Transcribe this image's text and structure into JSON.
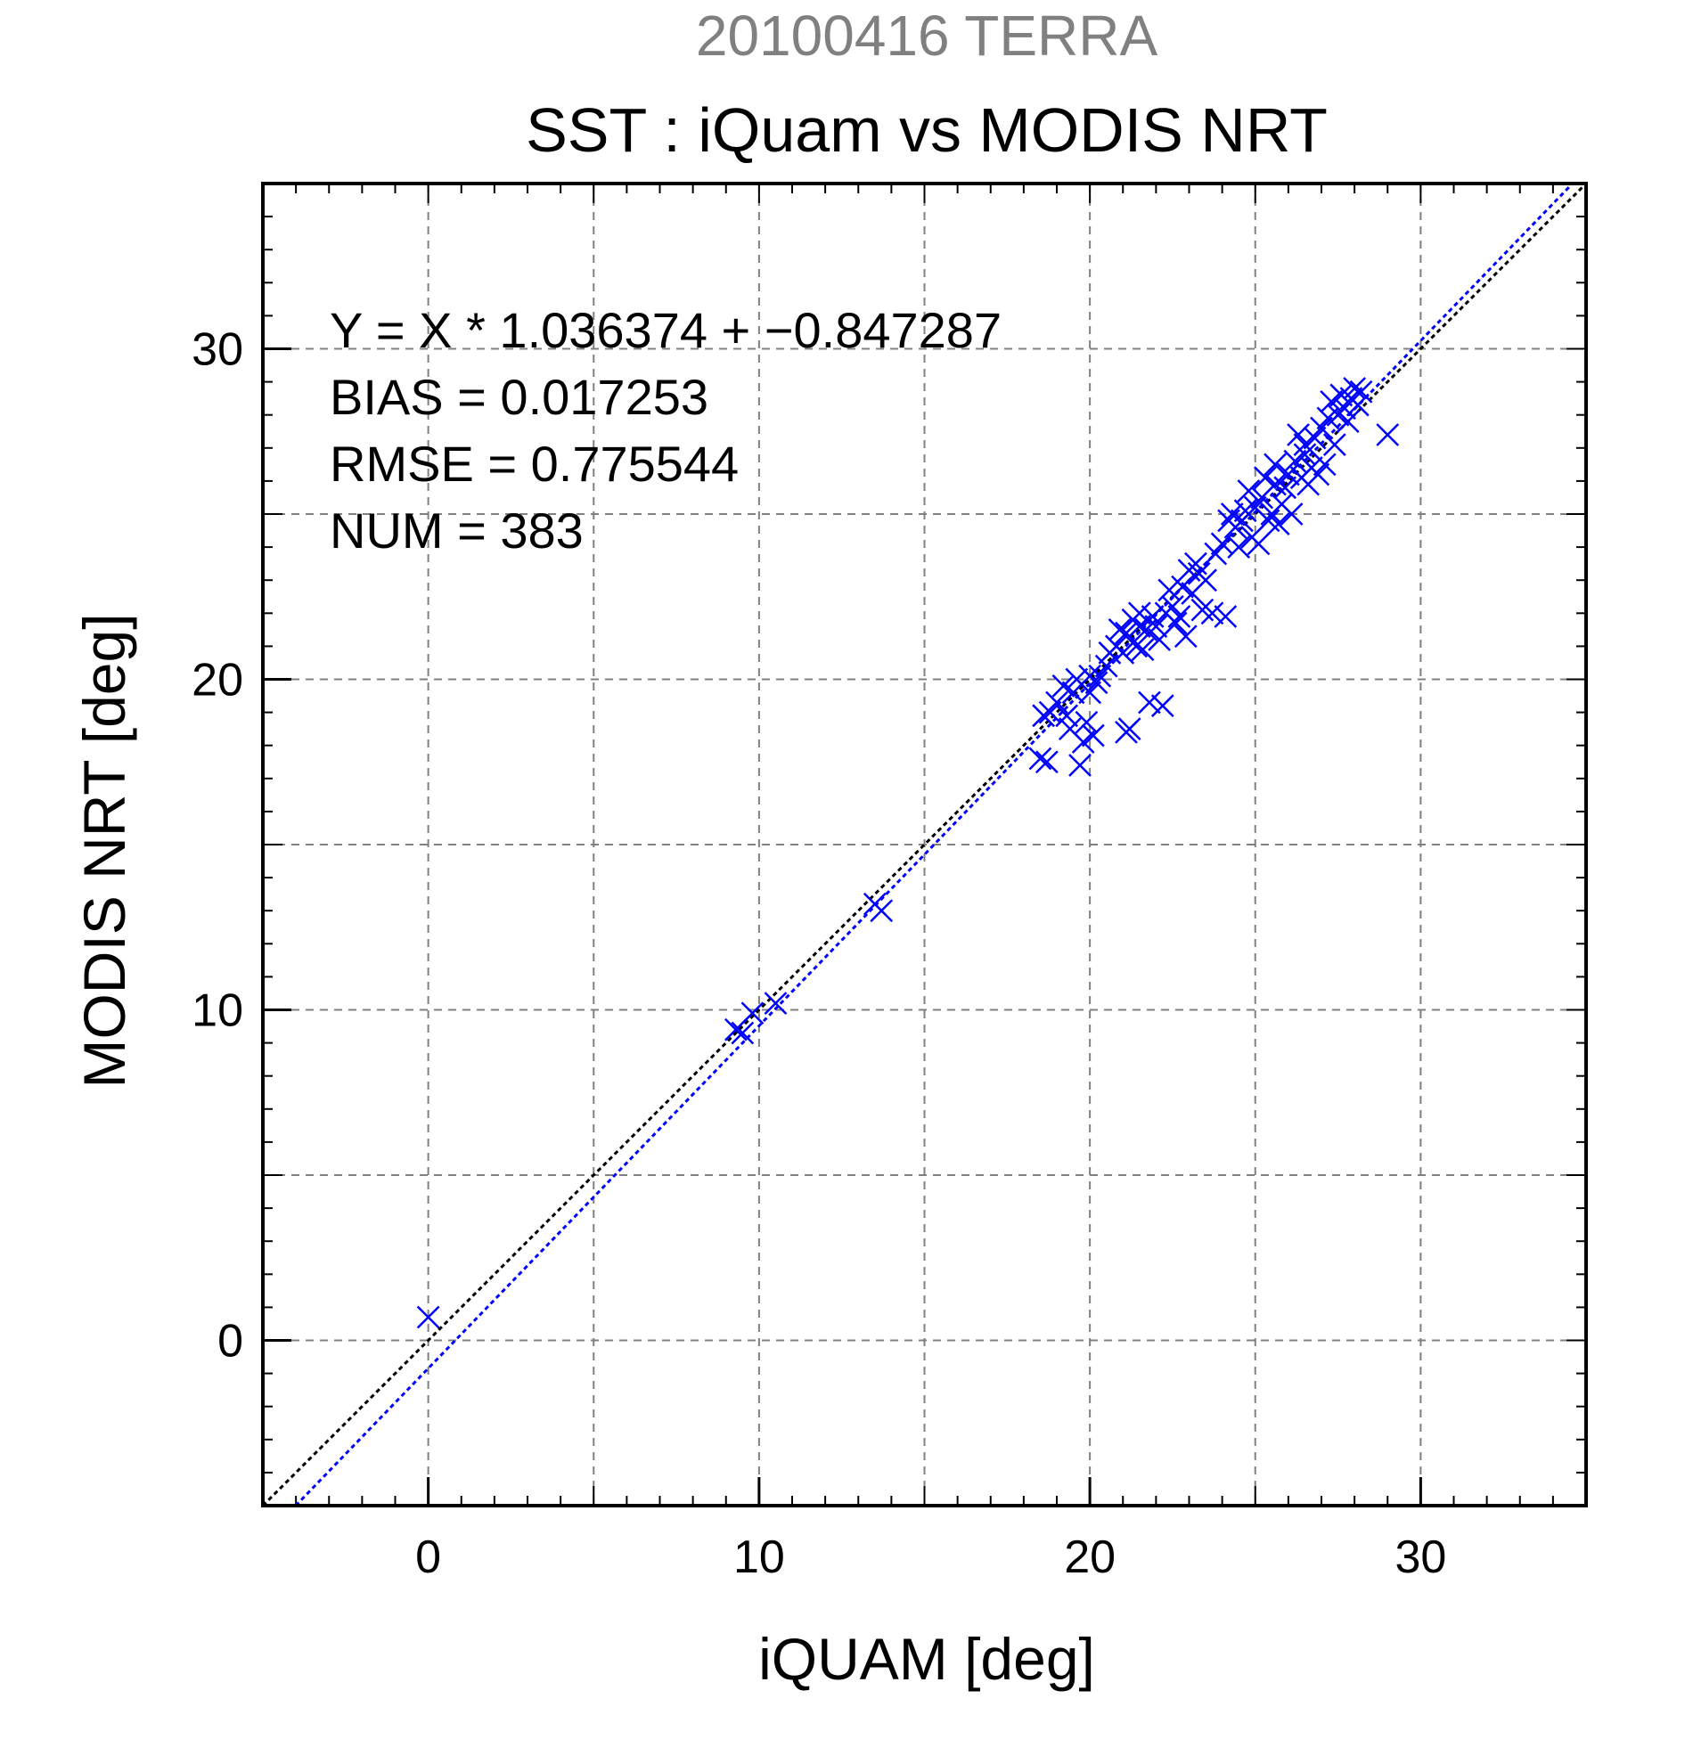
{
  "chart_data": {
    "type": "scatter",
    "supertitle": "20100416 TERRA",
    "title": "SST : iQuam vs MODIS NRT",
    "xlabel": "iQUAM [deg]",
    "ylabel": "MODIS NRT [deg]",
    "xlim": [
      -5,
      35
    ],
    "ylim": [
      -5,
      35
    ],
    "xticks": [
      0,
      10,
      20,
      30
    ],
    "yticks": [
      0,
      10,
      20,
      30
    ],
    "grid": true,
    "stats": {
      "regression": "Y = X * 1.036374 + −0.847287",
      "bias": "BIAS = 0.017253",
      "rmse": "RMSE = 0.775544",
      "num": "NUM = 383"
    },
    "lines": [
      {
        "role": "one-to-one",
        "slope": 1,
        "intercept": 0,
        "color": "#000000"
      },
      {
        "role": "regression-fit",
        "slope": 1.036374,
        "intercept": -0.847287,
        "color": "#0000ff"
      }
    ],
    "marker": {
      "shape": "x",
      "color": "#0000ff"
    },
    "points": [
      [
        0.0,
        0.7
      ],
      [
        9.3,
        9.4
      ],
      [
        9.5,
        9.3
      ],
      [
        9.8,
        9.9
      ],
      [
        10.5,
        10.2
      ],
      [
        13.5,
        13.2
      ],
      [
        13.7,
        13.0
      ],
      [
        18.5,
        17.6
      ],
      [
        18.7,
        17.5
      ],
      [
        18.6,
        18.9
      ],
      [
        18.8,
        19.0
      ],
      [
        19.0,
        19.3
      ],
      [
        19.2,
        19.8
      ],
      [
        19.3,
        18.9
      ],
      [
        19.4,
        18.5
      ],
      [
        19.5,
        19.6
      ],
      [
        19.6,
        20.0
      ],
      [
        19.7,
        17.4
      ],
      [
        19.8,
        18.1
      ],
      [
        19.9,
        18.7
      ],
      [
        20.0,
        19.6
      ],
      [
        20.0,
        20.1
      ],
      [
        20.1,
        18.3
      ],
      [
        20.2,
        19.9
      ],
      [
        20.3,
        20.1
      ],
      [
        20.5,
        20.4
      ],
      [
        20.6,
        20.8
      ],
      [
        20.8,
        21.0
      ],
      [
        20.9,
        21.5
      ],
      [
        21.0,
        20.8
      ],
      [
        21.1,
        21.4
      ],
      [
        21.1,
        18.4
      ],
      [
        21.2,
        18.5
      ],
      [
        21.3,
        21.8
      ],
      [
        21.4,
        21.0
      ],
      [
        21.5,
        21.6
      ],
      [
        21.5,
        22.0
      ],
      [
        21.6,
        20.9
      ],
      [
        21.7,
        21.5
      ],
      [
        21.8,
        19.3
      ],
      [
        21.9,
        21.9
      ],
      [
        22.0,
        21.6
      ],
      [
        22.1,
        21.2
      ],
      [
        22.2,
        19.2
      ],
      [
        22.3,
        22.0
      ],
      [
        22.4,
        22.7
      ],
      [
        22.5,
        22.2
      ],
      [
        22.6,
        21.7
      ],
      [
        22.7,
        21.9
      ],
      [
        22.8,
        22.8
      ],
      [
        22.9,
        21.3
      ],
      [
        23.0,
        23.3
      ],
      [
        23.1,
        22.6
      ],
      [
        23.2,
        23.5
      ],
      [
        23.3,
        23.2
      ],
      [
        23.4,
        22.1
      ],
      [
        23.5,
        23.0
      ],
      [
        23.7,
        22.0
      ],
      [
        23.8,
        23.8
      ],
      [
        24.0,
        24.1
      ],
      [
        24.1,
        21.9
      ],
      [
        24.2,
        24.8
      ],
      [
        24.3,
        25.0
      ],
      [
        24.4,
        24.6
      ],
      [
        24.5,
        24.0
      ],
      [
        24.6,
        24.8
      ],
      [
        24.7,
        25.1
      ],
      [
        24.8,
        25.7
      ],
      [
        24.9,
        24.3
      ],
      [
        25.0,
        25.2
      ],
      [
        25.1,
        24.1
      ],
      [
        25.2,
        25.5
      ],
      [
        25.3,
        26.1
      ],
      [
        25.4,
        24.8
      ],
      [
        25.5,
        25.0
      ],
      [
        25.6,
        26.5
      ],
      [
        25.6,
        25.9
      ],
      [
        25.7,
        24.7
      ],
      [
        25.8,
        25.3
      ],
      [
        25.9,
        25.8
      ],
      [
        26.0,
        26.2
      ],
      [
        26.1,
        25.0
      ],
      [
        26.2,
        26.6
      ],
      [
        26.3,
        27.4
      ],
      [
        26.4,
        26.1
      ],
      [
        26.5,
        27.1
      ],
      [
        26.5,
        26.8
      ],
      [
        26.6,
        25.9
      ],
      [
        26.7,
        26.4
      ],
      [
        26.8,
        27.3
      ],
      [
        26.9,
        26.2
      ],
      [
        27.0,
        27.6
      ],
      [
        27.1,
        26.5
      ],
      [
        27.2,
        27.9
      ],
      [
        27.3,
        28.4
      ],
      [
        27.4,
        27.1
      ],
      [
        27.5,
        28.0
      ],
      [
        27.6,
        28.6
      ],
      [
        27.7,
        28.2
      ],
      [
        27.8,
        27.8
      ],
      [
        27.9,
        28.5
      ],
      [
        28.0,
        28.8
      ],
      [
        28.1,
        28.3
      ],
      [
        28.2,
        28.7
      ],
      [
        29.0,
        27.4
      ]
    ]
  }
}
